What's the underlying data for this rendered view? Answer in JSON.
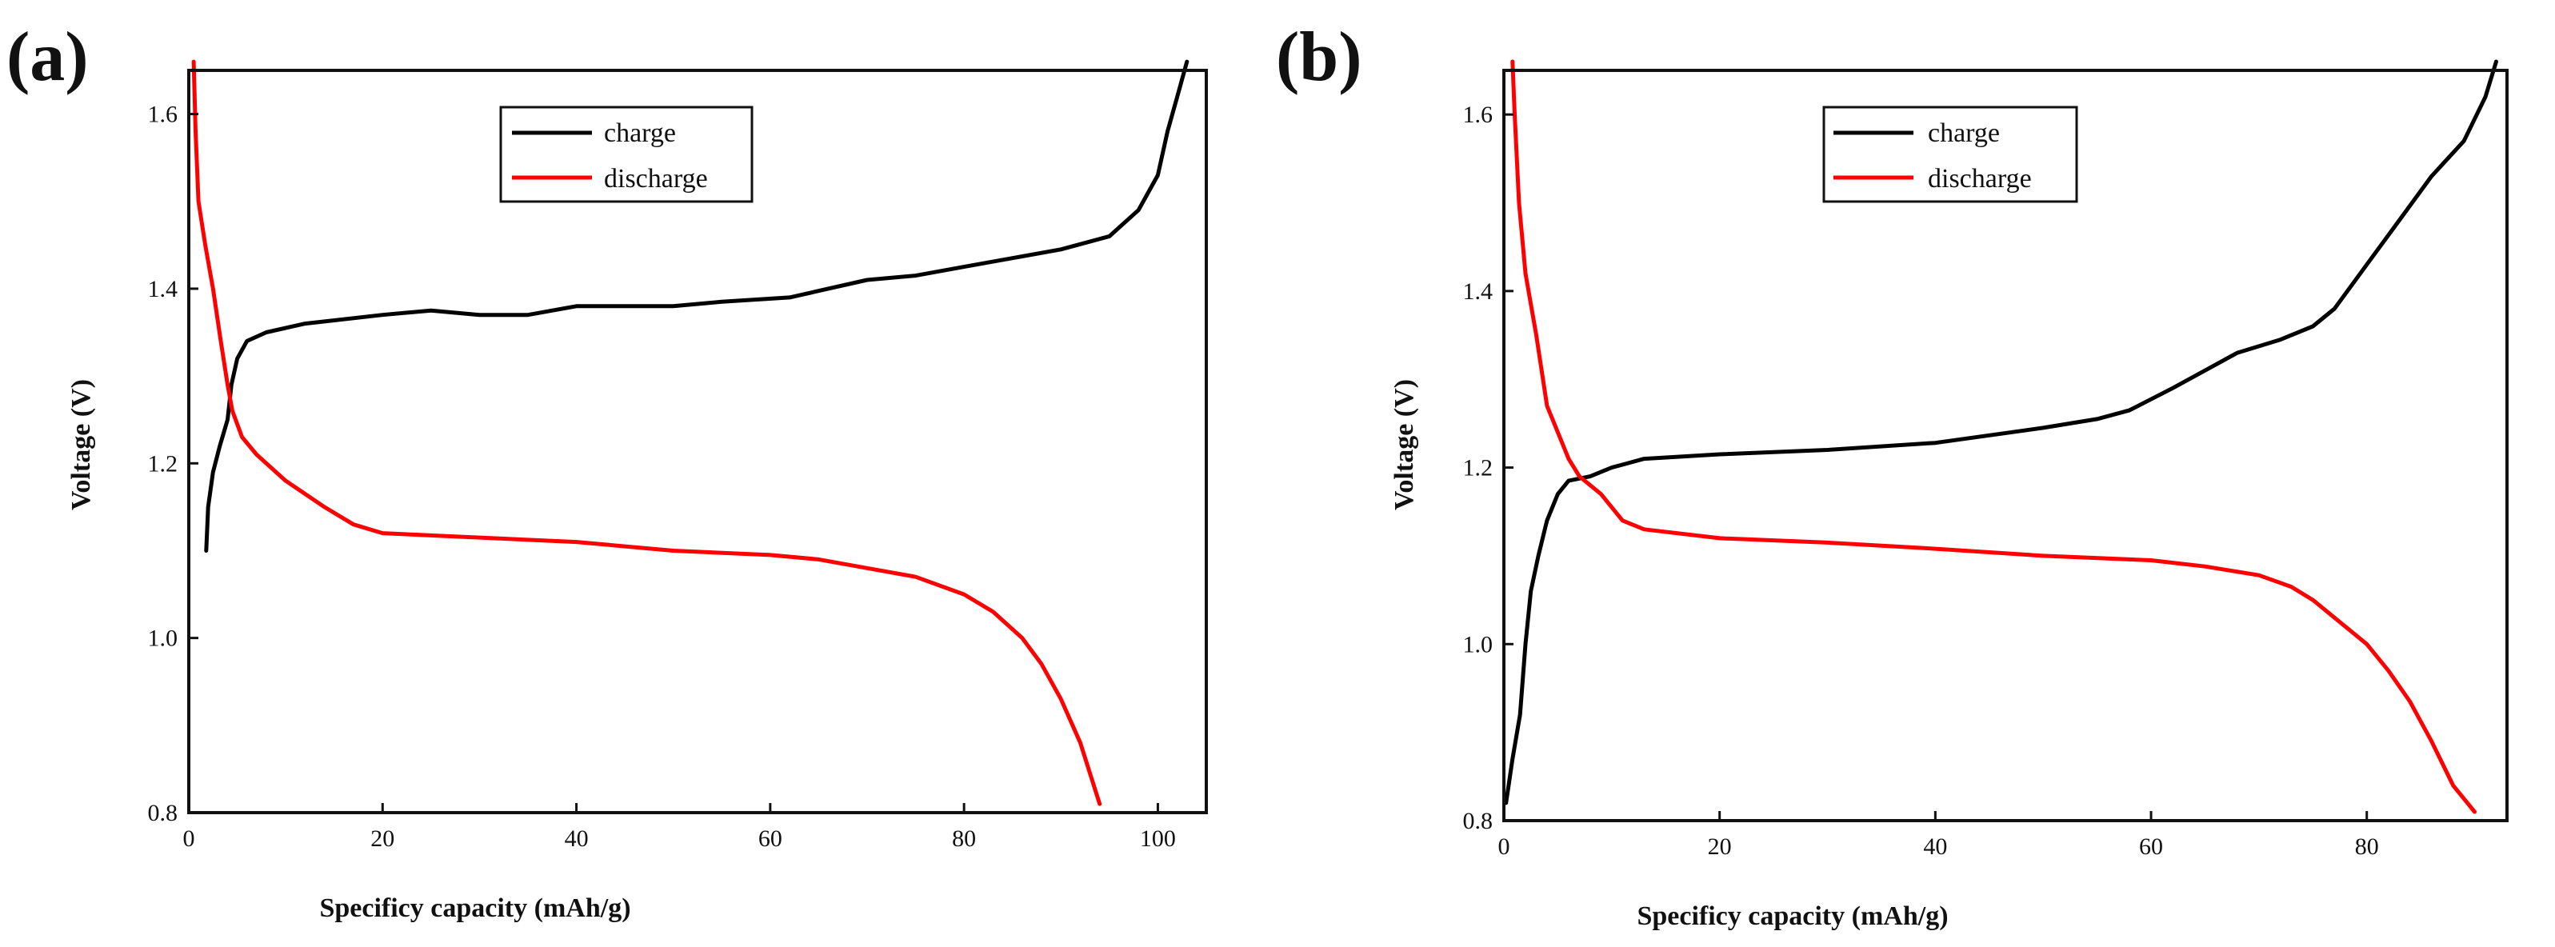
{
  "figure": {
    "panels": [
      "(a)",
      "(b)"
    ]
  },
  "chart_data": [
    {
      "type": "line",
      "panel": "(a)",
      "title": "",
      "xlabel": "Specificy capacity (mAh/g)",
      "ylabel": "Voltage (V)",
      "xlim": [
        0,
        105
      ],
      "ylim": [
        0.8,
        1.65
      ],
      "xticks": [
        "0",
        "20",
        "40",
        "60",
        "80",
        "100"
      ],
      "xtick_values": [
        0,
        20,
        40,
        60,
        80,
        100
      ],
      "yticks": [
        "0.8",
        "1.0",
        "1.2",
        "1.4",
        "1.6"
      ],
      "ytick_values": [
        0.8,
        1.0,
        1.2,
        1.4,
        1.6
      ],
      "grid": false,
      "legend_position": "top-center",
      "series": [
        {
          "name": "charge",
          "color": "#000000",
          "points": [
            [
              1.8,
              1.1
            ],
            [
              2.0,
              1.15
            ],
            [
              2.5,
              1.19
            ],
            [
              3.2,
              1.22
            ],
            [
              4.0,
              1.25
            ],
            [
              4.4,
              1.29
            ],
            [
              5.0,
              1.32
            ],
            [
              6.0,
              1.34
            ],
            [
              8.0,
              1.35
            ],
            [
              12,
              1.36
            ],
            [
              20,
              1.37
            ],
            [
              25,
              1.375
            ],
            [
              30,
              1.37
            ],
            [
              35,
              1.37
            ],
            [
              40,
              1.38
            ],
            [
              50,
              1.38
            ],
            [
              55,
              1.385
            ],
            [
              62,
              1.39
            ],
            [
              70,
              1.41
            ],
            [
              75,
              1.415
            ],
            [
              80,
              1.425
            ],
            [
              85,
              1.435
            ],
            [
              90,
              1.445
            ],
            [
              95,
              1.46
            ],
            [
              98,
              1.49
            ],
            [
              100,
              1.53
            ],
            [
              101,
              1.58
            ],
            [
              102,
              1.62
            ],
            [
              103,
              1.66
            ]
          ]
        },
        {
          "name": "discharge",
          "color": "#ff0000",
          "points": [
            [
              0.5,
              1.66
            ],
            [
              0.7,
              1.58
            ],
            [
              1.0,
              1.5
            ],
            [
              1.7,
              1.45
            ],
            [
              2.5,
              1.4
            ],
            [
              3.3,
              1.34
            ],
            [
              4.0,
              1.29
            ],
            [
              4.5,
              1.26
            ],
            [
              5.5,
              1.23
            ],
            [
              7.0,
              1.21
            ],
            [
              10,
              1.18
            ],
            [
              14,
              1.15
            ],
            [
              17,
              1.13
            ],
            [
              20,
              1.12
            ],
            [
              30,
              1.115
            ],
            [
              40,
              1.11
            ],
            [
              50,
              1.1
            ],
            [
              60,
              1.095
            ],
            [
              65,
              1.09
            ],
            [
              70,
              1.08
            ],
            [
              75,
              1.07
            ],
            [
              80,
              1.05
            ],
            [
              83,
              1.03
            ],
            [
              86,
              1.0
            ],
            [
              88,
              0.97
            ],
            [
              90,
              0.93
            ],
            [
              92,
              0.88
            ],
            [
              94,
              0.81
            ]
          ]
        }
      ]
    },
    {
      "type": "line",
      "panel": "(b)",
      "title": "",
      "xlabel": "Specificy capacity (mAh/g)",
      "ylabel": "Voltage (V)",
      "xlim": [
        0,
        93
      ],
      "ylim": [
        0.8,
        1.65
      ],
      "xticks": [
        "0",
        "20",
        "40",
        "60",
        "80"
      ],
      "xtick_values": [
        0,
        20,
        40,
        60,
        80
      ],
      "yticks": [
        "0.8",
        "1.0",
        "1.2",
        "1.4",
        "1.6"
      ],
      "ytick_values": [
        0.8,
        1.0,
        1.2,
        1.4,
        1.6
      ],
      "grid": false,
      "legend_position": "top-center",
      "series": [
        {
          "name": "charge",
          "color": "#000000",
          "points": [
            [
              0.2,
              0.82
            ],
            [
              0.8,
              0.87
            ],
            [
              1.5,
              0.92
            ],
            [
              2.0,
              1.0
            ],
            [
              2.5,
              1.06
            ],
            [
              3.2,
              1.1
            ],
            [
              4.0,
              1.14
            ],
            [
              5.0,
              1.17
            ],
            [
              6.0,
              1.185
            ],
            [
              8.0,
              1.19
            ],
            [
              10,
              1.2
            ],
            [
              13,
              1.21
            ],
            [
              20,
              1.215
            ],
            [
              30,
              1.22
            ],
            [
              40,
              1.228
            ],
            [
              50,
              1.245
            ],
            [
              55,
              1.255
            ],
            [
              58,
              1.265
            ],
            [
              62,
              1.29
            ],
            [
              65,
              1.31
            ],
            [
              68,
              1.33
            ],
            [
              72,
              1.345
            ],
            [
              75,
              1.36
            ],
            [
              77,
              1.38
            ],
            [
              80,
              1.43
            ],
            [
              83,
              1.48
            ],
            [
              86,
              1.53
            ],
            [
              89,
              1.57
            ],
            [
              91,
              1.62
            ],
            [
              92,
              1.66
            ]
          ]
        },
        {
          "name": "discharge",
          "color": "#ff0000",
          "points": [
            [
              0.8,
              1.66
            ],
            [
              1.0,
              1.6
            ],
            [
              1.4,
              1.5
            ],
            [
              2.0,
              1.42
            ],
            [
              3.0,
              1.35
            ],
            [
              4.0,
              1.27
            ],
            [
              5.0,
              1.24
            ],
            [
              6.0,
              1.21
            ],
            [
              7.0,
              1.19
            ],
            [
              9.0,
              1.17
            ],
            [
              11,
              1.14
            ],
            [
              13,
              1.13
            ],
            [
              20,
              1.12
            ],
            [
              30,
              1.115
            ],
            [
              40,
              1.108
            ],
            [
              50,
              1.1
            ],
            [
              60,
              1.095
            ],
            [
              65,
              1.088
            ],
            [
              70,
              1.078
            ],
            [
              73,
              1.065
            ],
            [
              75,
              1.05
            ],
            [
              78,
              1.02
            ],
            [
              80,
              1.0
            ],
            [
              82,
              0.97
            ],
            [
              84,
              0.935
            ],
            [
              86,
              0.89
            ],
            [
              88,
              0.84
            ],
            [
              90,
              0.81
            ]
          ]
        }
      ]
    }
  ]
}
